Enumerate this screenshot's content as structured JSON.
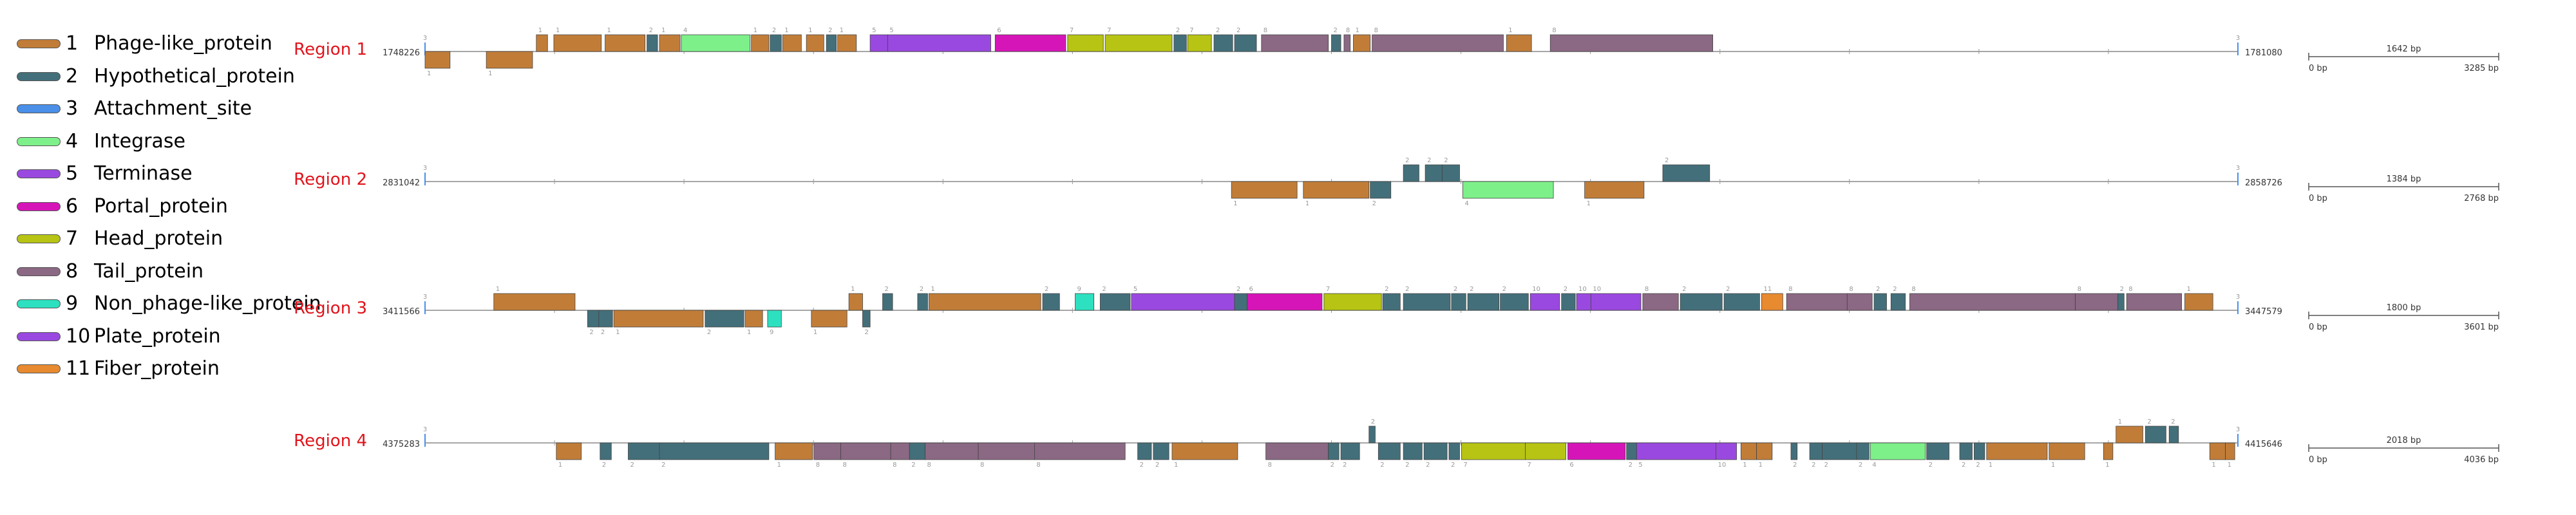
{
  "legend": [
    {
      "num": "1",
      "label": "Phage-like_protein",
      "color": "#c17d38"
    },
    {
      "num": "2",
      "label": "Hypothetical_protein",
      "color": "#436f7a"
    },
    {
      "num": "3",
      "label": "Attachment_site",
      "color": "#4a8fe8"
    },
    {
      "num": "4",
      "label": "Integrase",
      "color": "#7ef08a"
    },
    {
      "num": "5",
      "label": "Terminase",
      "color": "#9a49e0"
    },
    {
      "num": "6",
      "label": "Portal_protein",
      "color": "#d615b8"
    },
    {
      "num": "7",
      "label": "Head_protein",
      "color": "#b7c414"
    },
    {
      "num": "8",
      "label": "Tail_protein",
      "color": "#8b6883"
    },
    {
      "num": "9",
      "label": "Non_phage-like_protein",
      "color": "#2de0c0"
    },
    {
      "num": "10",
      "label": "Plate_protein",
      "color": "#9a49e0"
    },
    {
      "num": "11",
      "label": "Fiber_protein",
      "color": "#e88a30"
    }
  ],
  "regions": [
    {
      "name": "Region 1",
      "start": "1748226",
      "end": "1781080",
      "scale": {
        "mid": "1642 bp",
        "left": "0 bp",
        "right": "3285 bp"
      },
      "genes": [
        {
          "c": 1,
          "s": 0,
          "e": 40,
          "strand": -1
        },
        {
          "c": 1,
          "s": 98,
          "e": 172,
          "strand": -1
        },
        {
          "c": 1,
          "s": 178,
          "e": 196,
          "strand": 1
        },
        {
          "c": 1,
          "s": 206,
          "e": 282,
          "strand": 1
        },
        {
          "c": 1,
          "s": 288,
          "e": 352,
          "strand": 1
        },
        {
          "c": 2,
          "s": 355,
          "e": 372,
          "strand": 1
        },
        {
          "c": 1,
          "s": 375,
          "e": 408,
          "strand": 1
        },
        {
          "c": 4,
          "s": 410,
          "e": 520,
          "strand": 1
        },
        {
          "c": 1,
          "s": 522,
          "e": 550,
          "strand": 1
        },
        {
          "c": 2,
          "s": 552,
          "e": 570,
          "strand": 1
        },
        {
          "c": 1,
          "s": 572,
          "e": 602,
          "strand": 1
        },
        {
          "c": 1,
          "s": 610,
          "e": 638,
          "strand": 1
        },
        {
          "c": 2,
          "s": 642,
          "e": 658,
          "strand": 1
        },
        {
          "c": 1,
          "s": 660,
          "e": 690,
          "strand": 1
        },
        {
          "c": 5,
          "s": 712,
          "e": 740,
          "strand": 1
        },
        {
          "c": 5,
          "s": 740,
          "e": 905,
          "strand": 1
        },
        {
          "c": 6,
          "s": 912,
          "e": 1025,
          "strand": 1
        },
        {
          "c": 7,
          "s": 1028,
          "e": 1085,
          "strand": 1
        },
        {
          "c": 7,
          "s": 1088,
          "e": 1195,
          "strand": 1
        },
        {
          "c": 2,
          "s": 1198,
          "e": 1218,
          "strand": 1
        },
        {
          "c": 7,
          "s": 1220,
          "e": 1258,
          "strand": 1
        },
        {
          "c": 2,
          "s": 1262,
          "e": 1292,
          "strand": 1
        },
        {
          "c": 2,
          "s": 1295,
          "e": 1330,
          "strand": 1
        },
        {
          "c": 8,
          "s": 1338,
          "e": 1445,
          "strand": 1
        },
        {
          "c": 2,
          "s": 1450,
          "e": 1465,
          "strand": 1
        },
        {
          "c": 8,
          "s": 1470,
          "e": 1480,
          "strand": 1
        },
        {
          "c": 1,
          "s": 1485,
          "e": 1512,
          "strand": 1
        },
        {
          "c": 8,
          "s": 1515,
          "e": 1725,
          "strand": 1
        },
        {
          "c": 1,
          "s": 1730,
          "e": 1770,
          "strand": 1
        },
        {
          "c": 8,
          "s": 1800,
          "e": 2060,
          "strand": 1
        }
      ]
    },
    {
      "name": "Region 2",
      "start": "2831042",
      "end": "2858726",
      "scale": {
        "mid": "1384 bp",
        "left": "0 bp",
        "right": "2768 bp"
      },
      "genes": [
        {
          "c": 1,
          "s": 1290,
          "e": 1395,
          "strand": -1
        },
        {
          "c": 1,
          "s": 1405,
          "e": 1510,
          "strand": -1
        },
        {
          "c": 2,
          "s": 1512,
          "e": 1545,
          "strand": -1
        },
        {
          "c": 2,
          "s": 1565,
          "e": 1590,
          "strand": 1
        },
        {
          "c": 2,
          "s": 1600,
          "e": 1627,
          "strand": 1
        },
        {
          "c": 2,
          "s": 1627,
          "e": 1655,
          "strand": 1
        },
        {
          "c": 4,
          "s": 1660,
          "e": 1805,
          "strand": -1
        },
        {
          "c": 1,
          "s": 1855,
          "e": 1950,
          "strand": -1
        },
        {
          "c": 2,
          "s": 1980,
          "e": 2055,
          "strand": 1
        }
      ]
    },
    {
      "name": "Region 3",
      "start": "3411566",
      "end": "3447579",
      "scale": {
        "mid": "1800 bp",
        "left": "0 bp",
        "right": "3601 bp"
      },
      "genes": [
        {
          "c": 1,
          "s": 110,
          "e": 240,
          "strand": 1
        },
        {
          "c": 2,
          "s": 260,
          "e": 278,
          "strand": -1
        },
        {
          "c": 2,
          "s": 278,
          "e": 300,
          "strand": -1
        },
        {
          "c": 1,
          "s": 302,
          "e": 445,
          "strand": -1
        },
        {
          "c": 2,
          "s": 448,
          "e": 510,
          "strand": -1
        },
        {
          "c": 1,
          "s": 512,
          "e": 540,
          "strand": -1
        },
        {
          "c": 9,
          "s": 548,
          "e": 570,
          "strand": -1
        },
        {
          "c": 1,
          "s": 618,
          "e": 675,
          "strand": -1
        },
        {
          "c": 1,
          "s": 678,
          "e": 700,
          "strand": 1
        },
        {
          "c": 2,
          "s": 700,
          "e": 712,
          "strand": -1
        },
        {
          "c": 2,
          "s": 732,
          "e": 748,
          "strand": 1
        },
        {
          "c": 2,
          "s": 788,
          "e": 804,
          "strand": 1
        },
        {
          "c": 1,
          "s": 806,
          "e": 985,
          "strand": 1
        },
        {
          "c": 2,
          "s": 988,
          "e": 1015,
          "strand": 1
        },
        {
          "c": 9,
          "s": 1040,
          "e": 1070,
          "strand": 1
        },
        {
          "c": 2,
          "s": 1080,
          "e": 1128,
          "strand": 1
        },
        {
          "c": 5,
          "s": 1130,
          "e": 1295,
          "strand": 1
        },
        {
          "c": 2,
          "s": 1295,
          "e": 1315,
          "strand": 1
        },
        {
          "c": 6,
          "s": 1315,
          "e": 1435,
          "strand": 1
        },
        {
          "c": 7,
          "s": 1438,
          "e": 1530,
          "strand": 1
        },
        {
          "c": 2,
          "s": 1532,
          "e": 1560,
          "strand": 1
        },
        {
          "c": 2,
          "s": 1565,
          "e": 1640,
          "strand": 1
        },
        {
          "c": 2,
          "s": 1642,
          "e": 1665,
          "strand": 1
        },
        {
          "c": 2,
          "s": 1668,
          "e": 1718,
          "strand": 1
        },
        {
          "c": 2,
          "s": 1720,
          "e": 1765,
          "strand": 1
        },
        {
          "c": 10,
          "s": 1768,
          "e": 1815,
          "strand": 1
        },
        {
          "c": 2,
          "s": 1818,
          "e": 1840,
          "strand": 1
        },
        {
          "c": 10,
          "s": 1842,
          "e": 1865,
          "strand": 1
        },
        {
          "c": 10,
          "s": 1865,
          "e": 1945,
          "strand": 1
        },
        {
          "c": 8,
          "s": 1948,
          "e": 2005,
          "strand": 1
        },
        {
          "c": 2,
          "s": 2008,
          "e": 2075,
          "strand": 1
        },
        {
          "c": 2,
          "s": 2078,
          "e": 2135,
          "strand": 1
        },
        {
          "c": 11,
          "s": 2138,
          "e": 2172,
          "strand": 1
        },
        {
          "c": 8,
          "s": 2178,
          "e": 2275,
          "strand": 1
        },
        {
          "c": 8,
          "s": 2275,
          "e": 2315,
          "strand": 1
        },
        {
          "c": 2,
          "s": 2318,
          "e": 2338,
          "strand": 1
        },
        {
          "c": 2,
          "s": 2345,
          "e": 2368,
          "strand": 1
        },
        {
          "c": 8,
          "s": 2375,
          "e": 2640,
          "strand": 1
        },
        {
          "c": 8,
          "s": 2640,
          "e": 2708,
          "strand": 1
        },
        {
          "c": 2,
          "s": 2708,
          "e": 2718,
          "strand": 1
        },
        {
          "c": 8,
          "s": 2722,
          "e": 2810,
          "strand": 1
        },
        {
          "c": 1,
          "s": 2815,
          "e": 2860,
          "strand": 1
        }
      ]
    },
    {
      "name": "Region 4",
      "start": "4375283",
      "end": "4415646",
      "scale": {
        "mid": "2018 bp",
        "left": "0 bp",
        "right": "4036 bp"
      },
      "genes": [
        {
          "c": 1,
          "s": 210,
          "e": 250,
          "strand": -1
        },
        {
          "c": 2,
          "s": 280,
          "e": 298,
          "strand": -1
        },
        {
          "c": 2,
          "s": 325,
          "e": 375,
          "strand": -1
        },
        {
          "c": 2,
          "s": 375,
          "e": 550,
          "strand": -1
        },
        {
          "c": 1,
          "s": 560,
          "e": 620,
          "strand": -1
        },
        {
          "c": 8,
          "s": 622,
          "e": 665,
          "strand": -1
        },
        {
          "c": 8,
          "s": 665,
          "e": 745,
          "strand": -1
        },
        {
          "c": 8,
          "s": 745,
          "e": 775,
          "strand": -1
        },
        {
          "c": 2,
          "s": 775,
          "e": 800,
          "strand": -1
        },
        {
          "c": 8,
          "s": 800,
          "e": 885,
          "strand": -1
        },
        {
          "c": 8,
          "s": 885,
          "e": 975,
          "strand": -1
        },
        {
          "c": 8,
          "s": 975,
          "e": 1120,
          "strand": -1
        },
        {
          "c": 2,
          "s": 1140,
          "e": 1162,
          "strand": -1
        },
        {
          "c": 2,
          "s": 1165,
          "e": 1190,
          "strand": -1
        },
        {
          "c": 1,
          "s": 1195,
          "e": 1300,
          "strand": -1
        },
        {
          "c": 8,
          "s": 1345,
          "e": 1445,
          "strand": -1
        },
        {
          "c": 2,
          "s": 1445,
          "e": 1462,
          "strand": -1
        },
        {
          "c": 2,
          "s": 1465,
          "e": 1495,
          "strand": -1
        },
        {
          "c": 2,
          "s": 1510,
          "e": 1520,
          "strand": 1
        },
        {
          "c": 2,
          "s": 1525,
          "e": 1560,
          "strand": -1
        },
        {
          "c": 2,
          "s": 1565,
          "e": 1595,
          "strand": -1
        },
        {
          "c": 2,
          "s": 1598,
          "e": 1635,
          "strand": -1
        },
        {
          "c": 2,
          "s": 1638,
          "e": 1655,
          "strand": -1
        },
        {
          "c": 7,
          "s": 1658,
          "e": 1760,
          "strand": -1
        },
        {
          "c": 7,
          "s": 1760,
          "e": 1825,
          "strand": -1
        },
        {
          "c": 6,
          "s": 1828,
          "e": 1920,
          "strand": -1
        },
        {
          "c": 2,
          "s": 1922,
          "e": 1938,
          "strand": -1
        },
        {
          "c": 5,
          "s": 1938,
          "e": 2065,
          "strand": -1
        },
        {
          "c": 10,
          "s": 2065,
          "e": 2098,
          "strand": -1
        },
        {
          "c": 1,
          "s": 2105,
          "e": 2130,
          "strand": -1
        },
        {
          "c": 1,
          "s": 2130,
          "e": 2155,
          "strand": -1
        },
        {
          "c": 2,
          "s": 2185,
          "e": 2195,
          "strand": -1
        },
        {
          "c": 2,
          "s": 2215,
          "e": 2235,
          "strand": -1
        },
        {
          "c": 2,
          "s": 2235,
          "e": 2290,
          "strand": -1
        },
        {
          "c": 2,
          "s": 2290,
          "e": 2310,
          "strand": -1
        },
        {
          "c": 4,
          "s": 2312,
          "e": 2400,
          "strand": -1
        },
        {
          "c": 2,
          "s": 2402,
          "e": 2438,
          "strand": -1
        },
        {
          "c": 2,
          "s": 2455,
          "e": 2475,
          "strand": -1
        },
        {
          "c": 2,
          "s": 2478,
          "e": 2495,
          "strand": -1
        },
        {
          "c": 1,
          "s": 2498,
          "e": 2595,
          "strand": -1
        },
        {
          "c": 1,
          "s": 2598,
          "e": 2655,
          "strand": -1
        },
        {
          "c": 1,
          "s": 2685,
          "e": 2700,
          "strand": -1
        },
        {
          "c": 1,
          "s": 2705,
          "e": 2748,
          "strand": 1
        },
        {
          "c": 2,
          "s": 2752,
          "e": 2785,
          "strand": 1
        },
        {
          "c": 2,
          "s": 2790,
          "e": 2805,
          "strand": 1
        },
        {
          "c": 1,
          "s": 2855,
          "e": 2880,
          "strand": -1
        },
        {
          "c": 1,
          "s": 2880,
          "e": 2895,
          "strand": -1
        }
      ]
    }
  ]
}
